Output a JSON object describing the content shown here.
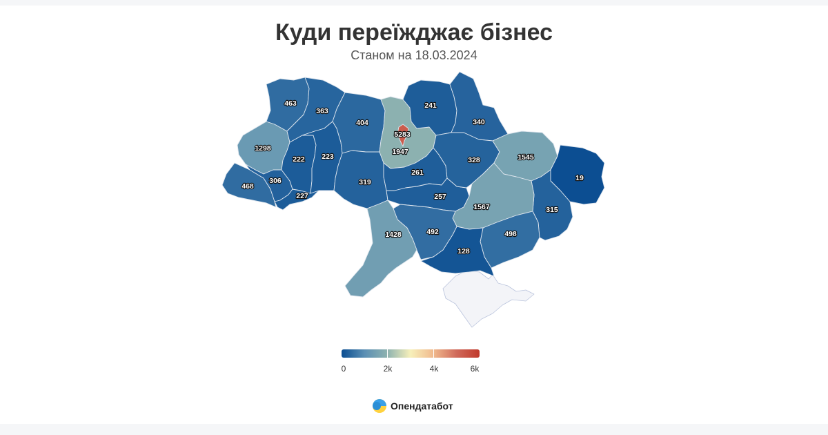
{
  "header": {
    "title": "Куди переїжджає бізнес",
    "subtitle": "Станом на 18.03.2024"
  },
  "map": {
    "color_scale": [
      "#0a4d91",
      "#5b8fb4",
      "#8fb3b0",
      "#f7f0ba",
      "#f0b98d",
      "#d06a5b",
      "#c0392b"
    ],
    "disabled_color": "#f3f4f8",
    "regions": [
      {
        "key": "lviv",
        "value": 1298
      },
      {
        "key": "volyn",
        "value": 463
      },
      {
        "key": "rivne",
        "value": 363
      },
      {
        "key": "zhytomyr",
        "value": 404
      },
      {
        "key": "kyiv_oblast",
        "value": 1947
      },
      {
        "key": "kyiv_city",
        "value": 5283
      },
      {
        "key": "chernihiv",
        "value": 241
      },
      {
        "key": "sumy",
        "value": 340
      },
      {
        "key": "kharkiv",
        "value": 1545
      },
      {
        "key": "luhansk",
        "value": 19
      },
      {
        "key": "donetsk",
        "value": 315
      },
      {
        "key": "zaporizhzhia",
        "value": 498
      },
      {
        "key": "kherson",
        "value": 128
      },
      {
        "key": "mykolaiv",
        "value": 492
      },
      {
        "key": "odesa",
        "value": 1428
      },
      {
        "key": "kirovohrad",
        "value": 257
      },
      {
        "key": "dnipropetrovsk",
        "value": 1567
      },
      {
        "key": "poltava",
        "value": 328
      },
      {
        "key": "cherkasy",
        "value": 261
      },
      {
        "key": "vinnytsia",
        "value": 319
      },
      {
        "key": "khmelnytskyi",
        "value": 223
      },
      {
        "key": "ternopil",
        "value": 222
      },
      {
        "key": "ivano_frankivsk",
        "value": 306
      },
      {
        "key": "zakarpattia",
        "value": 468
      },
      {
        "key": "chernivtsi",
        "value": 227
      },
      {
        "key": "crimea",
        "value": null
      }
    ]
  },
  "legend": {
    "min": 0,
    "max": 6000,
    "labels": [
      "0",
      "2k",
      "4k",
      "6k"
    ]
  },
  "brand": {
    "name": "Опендатабот",
    "logo_icon": "opendatabot-logo-icon"
  }
}
